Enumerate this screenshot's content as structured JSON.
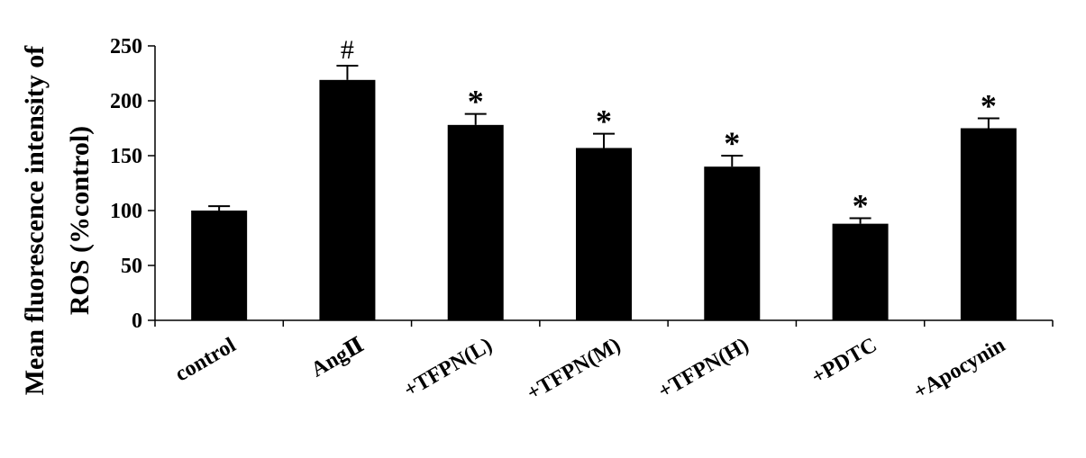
{
  "chart_data": {
    "type": "bar",
    "ylabel_line1": "Mean fluorescence intensity of",
    "ylabel_line2": "ROS (%control)",
    "xlabel": "",
    "ylim": [
      0,
      250
    ],
    "yticks": [
      0,
      50,
      100,
      150,
      200,
      250
    ],
    "categories": [
      "control",
      "AngⅡ",
      "+TFPN(L)",
      "+TFPN(M)",
      "+TFPN(H)",
      "+PDTC",
      "+Apocynin"
    ],
    "values": [
      100,
      219,
      178,
      157,
      140,
      88,
      175
    ],
    "errors": [
      4,
      13,
      10,
      13,
      10,
      5,
      9
    ],
    "annotations": [
      "",
      "#",
      "*",
      "*",
      "*",
      "*",
      "*"
    ],
    "bar_color": "#000000",
    "grid": false,
    "legend": "none"
  }
}
